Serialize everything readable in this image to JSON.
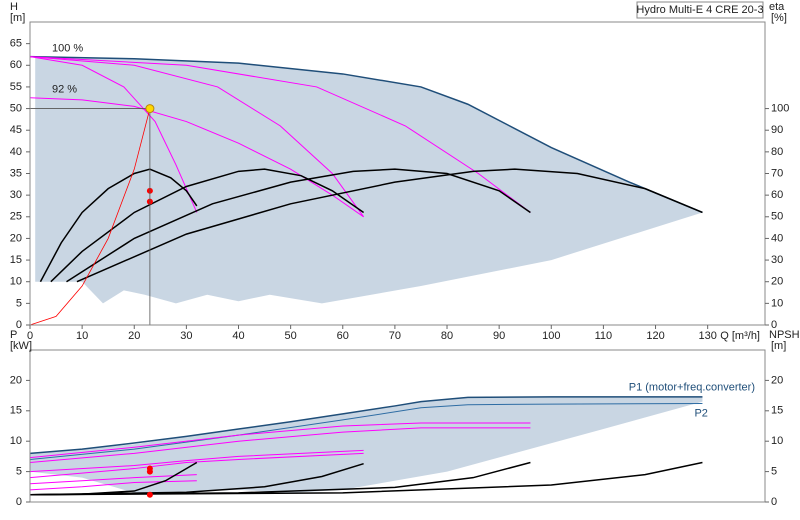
{
  "chart_data": [
    {
      "type": "line",
      "title": "Hydro Multi-E 4 CRE 20-3",
      "y_label": "H",
      "y_unit": "[m]",
      "y2_label": "eta",
      "y2_unit": "[%]",
      "x_label": "Q [m³/h]",
      "xlim": [
        0,
        141
      ],
      "xticks": [
        0,
        10,
        20,
        30,
        40,
        50,
        60,
        70,
        80,
        90,
        100,
        110,
        120,
        130
      ],
      "ylim": [
        0,
        70
      ],
      "yticks": [
        0,
        5,
        10,
        15,
        20,
        25,
        30,
        35,
        40,
        45,
        50,
        55,
        60,
        65
      ],
      "y2lim": [
        0,
        140
      ],
      "y2ticks": [
        0,
        10,
        20,
        30,
        40,
        50,
        60,
        70,
        80,
        90,
        100
      ],
      "shaded_region": {
        "color": "#c9d6e3",
        "x": [
          0,
          20,
          40,
          60,
          75,
          84,
          100,
          115,
          129,
          100,
          75,
          56,
          46,
          40,
          34,
          28,
          22,
          18,
          14,
          10,
          1,
          1
        ],
        "values": [
          62,
          61.5,
          60.5,
          58,
          55,
          51,
          41,
          33,
          26,
          15,
          9,
          5,
          7,
          5.5,
          7,
          5,
          7,
          8,
          5,
          10,
          10,
          62
        ]
      },
      "series": [
        {
          "color": "#1f4e79",
          "width": 1.5,
          "x": [
            0,
            20,
            40,
            60,
            75,
            84,
            100,
            115,
            129
          ],
          "values": [
            62,
            61.5,
            60.5,
            58,
            55,
            51,
            41,
            33,
            26
          ]
        },
        {
          "name": "100 %",
          "color": "#ff00ff",
          "x": [
            0,
            10,
            18,
            24,
            28,
            32
          ],
          "values": [
            62,
            60,
            55,
            47,
            37,
            26
          ]
        },
        {
          "color": "#ff00ff",
          "x": [
            0,
            20,
            36,
            48,
            58,
            64
          ],
          "values": [
            62,
            60,
            55,
            46,
            35,
            25
          ]
        },
        {
          "color": "#ff00ff",
          "x": [
            0,
            30,
            55,
            72,
            86,
            96
          ],
          "values": [
            62,
            60,
            55,
            46,
            35,
            26
          ]
        },
        {
          "name": "92 %",
          "color": "#ff00ff",
          "x": [
            0,
            10,
            20,
            30,
            40,
            50,
            58,
            64
          ],
          "values": [
            52.5,
            52,
            50.5,
            47,
            42,
            36,
            30,
            25
          ]
        },
        {
          "color": "#000000",
          "width": 1.5,
          "axis": "y2",
          "x": [
            2,
            6,
            10,
            15,
            20,
            23,
            27,
            30,
            32
          ],
          "values": [
            20,
            38,
            52,
            63,
            70,
            72,
            68,
            62,
            55
          ]
        },
        {
          "color": "#000000",
          "width": 1.5,
          "axis": "y2",
          "x": [
            4,
            10,
            20,
            30,
            40,
            45,
            52,
            58,
            64
          ],
          "values": [
            20,
            34,
            52,
            64,
            71,
            72,
            69,
            62,
            52
          ]
        },
        {
          "color": "#000000",
          "width": 1.5,
          "axis": "y2",
          "x": [
            7,
            20,
            35,
            50,
            62,
            70,
            80,
            90,
            96
          ],
          "values": [
            20,
            40,
            56,
            66,
            71,
            72,
            70,
            62,
            52
          ]
        },
        {
          "color": "#000000",
          "width": 1.5,
          "axis": "y2",
          "x": [
            9,
            30,
            50,
            70,
            85,
            93,
            105,
            118,
            129
          ],
          "values": [
            20,
            42,
            56,
            66,
            71,
            72,
            70,
            63,
            52
          ]
        },
        {
          "color": "#ff0000",
          "width": 0.8,
          "x": [
            0,
            5,
            10,
            15,
            20,
            23
          ],
          "values": [
            0,
            2,
            9,
            20,
            36,
            50
          ]
        }
      ],
      "points": [
        {
          "color": "#ff0000",
          "x": [
            23,
            23
          ],
          "values": [
            31,
            28.5
          ]
        },
        {
          "color": "#ffd700",
          "guide_lines": true,
          "x": [
            23
          ],
          "values": [
            50
          ]
        }
      ]
    },
    {
      "type": "line",
      "y_label": "P",
      "y_unit": "[kW]",
      "y2_label": "NPSH",
      "y2_unit": "[m]",
      "xlim": [
        0,
        141
      ],
      "ylim": [
        0,
        25
      ],
      "yticks": [
        0,
        5,
        10,
        15,
        20
      ],
      "y2lim": [
        0,
        25
      ],
      "y2ticks": [
        0,
        5,
        10,
        15,
        20
      ],
      "shaded_region": {
        "color": "#c9d6e3",
        "x": [
          0,
          20,
          40,
          60,
          75,
          84,
          129,
          129,
          110,
          80,
          60,
          50,
          40,
          20,
          10,
          0
        ],
        "values": [
          8,
          9.5,
          12,
          14.5,
          16.5,
          17.2,
          17.3,
          16.5,
          12,
          5,
          2,
          1.5,
          2,
          1.5,
          4,
          5
        ]
      },
      "series": [
        {
          "name": "P1 (motor+freq.converter)",
          "color": "#1f4e79",
          "width": 1.5,
          "x": [
            0,
            10,
            20,
            30,
            40,
            50,
            60,
            70,
            75,
            84,
            100,
            129
          ],
          "values": [
            8,
            8.7,
            9.7,
            10.8,
            12,
            13.2,
            14.5,
            15.8,
            16.5,
            17.2,
            17.3,
            17.3
          ]
        },
        {
          "name": "P2",
          "color": "#2e6da4",
          "x": [
            0,
            20,
            40,
            60,
            75,
            84,
            100,
            129
          ],
          "values": [
            7,
            8.7,
            11,
            13.5,
            15.5,
            16,
            16.1,
            16.2
          ]
        },
        {
          "color": "#ff00ff",
          "x": [
            0,
            20,
            40,
            60,
            75,
            96
          ],
          "values": [
            7.3,
            9,
            11,
            12.5,
            13,
            13
          ]
        },
        {
          "color": "#ff00ff",
          "x": [
            0,
            20,
            40,
            60,
            75,
            96
          ],
          "values": [
            6.5,
            8,
            10,
            11.5,
            12.2,
            12.2
          ]
        },
        {
          "color": "#ff00ff",
          "x": [
            0,
            20,
            30,
            40,
            64
          ],
          "values": [
            5,
            6,
            6.8,
            7.5,
            8.5
          ]
        },
        {
          "color": "#ff00ff",
          "x": [
            0,
            20,
            30,
            40,
            64
          ],
          "values": [
            4,
            5.5,
            6.5,
            7,
            8
          ]
        },
        {
          "color": "#ff00ff",
          "x": [
            0,
            10,
            20,
            32
          ],
          "values": [
            3,
            3.5,
            4,
            4.5
          ]
        },
        {
          "color": "#ff00ff",
          "x": [
            0,
            10,
            20,
            32
          ],
          "values": [
            2,
            2.5,
            3.2,
            3.5
          ]
        },
        {
          "color": "#000000",
          "width": 1.5,
          "axis": "y2",
          "x": [
            0,
            10,
            20,
            26,
            32
          ],
          "values": [
            1.2,
            1.3,
            1.8,
            3.5,
            6.5
          ]
        },
        {
          "color": "#000000",
          "width": 1.5,
          "axis": "y2",
          "x": [
            0,
            30,
            45,
            56,
            64
          ],
          "values": [
            1.2,
            1.6,
            2.5,
            4.2,
            6.3
          ]
        },
        {
          "color": "#000000",
          "width": 1.5,
          "axis": "y2",
          "x": [
            0,
            40,
            70,
            85,
            96
          ],
          "values": [
            1.2,
            1.5,
            2.4,
            4,
            6.5
          ]
        },
        {
          "color": "#000000",
          "width": 1.5,
          "axis": "y2",
          "x": [
            0,
            60,
            100,
            118,
            129
          ],
          "values": [
            1.2,
            1.5,
            2.8,
            4.5,
            6.5
          ]
        }
      ],
      "points": [
        {
          "color": "#ff0000",
          "x": [
            23,
            23
          ],
          "values": [
            5.5,
            5
          ]
        },
        {
          "color": "#ff0000",
          "axis": "y2",
          "x": [
            23
          ],
          "values": [
            1.2
          ]
        }
      ]
    }
  ]
}
